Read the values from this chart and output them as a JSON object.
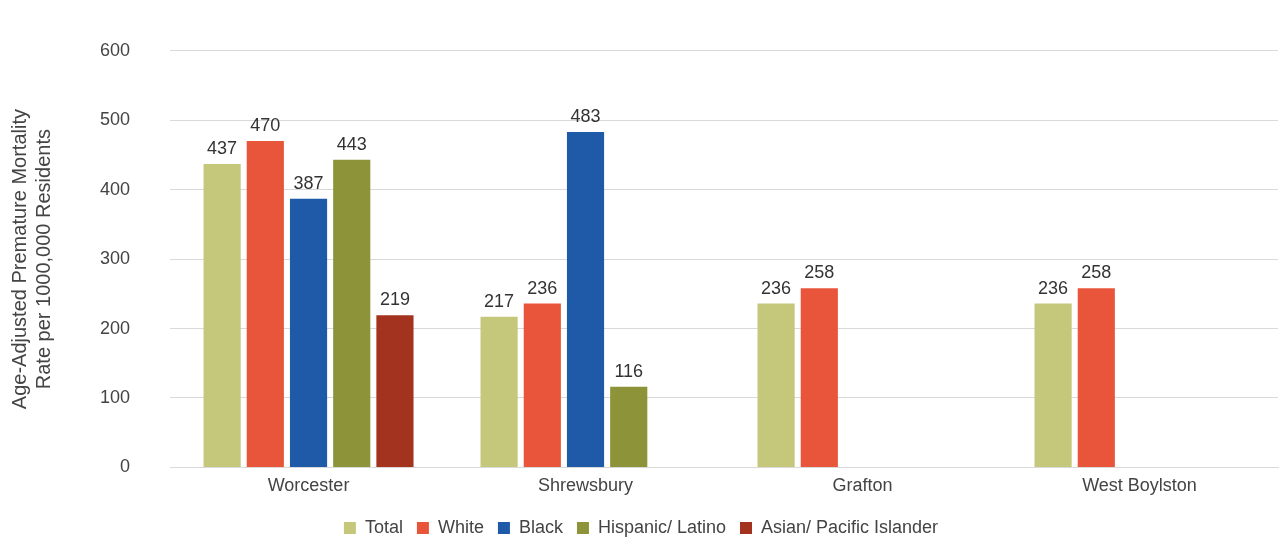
{
  "chart_data": {
    "type": "bar",
    "ylabel": "Age-Adjusted Premature Mortality\nRate per 1000,000 Residents",
    "categories": [
      "Worcester",
      "Shrewsbury",
      "Grafton",
      "West Boylston"
    ],
    "series": [
      {
        "name": "Total",
        "color": "#c5c87a",
        "values": [
          437,
          217,
          236,
          236
        ]
      },
      {
        "name": "White",
        "color": "#e9553a",
        "values": [
          470,
          236,
          258,
          258
        ]
      },
      {
        "name": "Black",
        "color": "#1f5aa8",
        "values": [
          387,
          483,
          null,
          null
        ]
      },
      {
        "name": "Hispanic/ Latino",
        "color": "#8c9338",
        "values": [
          443,
          116,
          null,
          null
        ]
      },
      {
        "name": "Asian/ Pacific Islander",
        "color": "#a3331f",
        "values": [
          219,
          null,
          null,
          null
        ]
      }
    ],
    "ylim": [
      0,
      600
    ],
    "yticks": [
      0,
      100,
      200,
      300,
      400,
      500,
      600
    ],
    "grid": "y",
    "legend": "bottom",
    "data_labels": true
  }
}
